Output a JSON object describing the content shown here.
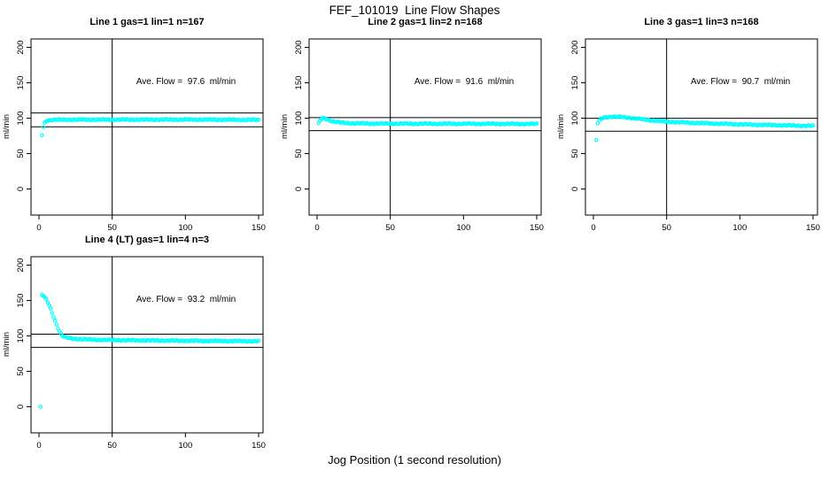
{
  "chart_data": {
    "type": "scatter",
    "title": "FEF_101019  Line Flow Shapes",
    "xlabel": "Jog Position (1 second resolution)",
    "ylabel": "ml/min",
    "xlim": [
      0,
      150
    ],
    "ylim": [
      0,
      200
    ],
    "x_ticks": [
      0,
      50,
      100,
      150
    ],
    "y_ticks": [
      0,
      50,
      100,
      150,
      200
    ],
    "grid": false,
    "legend": "none",
    "marker": "open-circle",
    "point_color": "#00ffff",
    "axis_color": "#000000",
    "vline_x": 50,
    "panels": [
      {
        "title": "Line 1 gas=1 lin=1 n=167",
        "ave_flow": 97.6,
        "annotation": "Ave. Flow =  97.6  ml/min",
        "hline_upper": 107.4,
        "hline_lower": 87.8,
        "n": 167,
        "outliers": [
          [
            2,
            76
          ]
        ],
        "profile": [
          [
            3,
            87.5
          ],
          [
            4,
            93.5
          ],
          [
            5,
            96
          ],
          [
            6,
            97
          ],
          [
            8,
            97.4
          ],
          [
            12,
            97.7
          ],
          [
            30,
            97.9
          ],
          [
            60,
            97.9
          ],
          [
            90,
            98
          ],
          [
            120,
            97.9
          ],
          [
            150,
            97.5
          ]
        ]
      },
      {
        "title": "Line 2 gas=1 lin=2 n=168",
        "ave_flow": 91.6,
        "annotation": "Ave. Flow =  91.6  ml/min",
        "hline_upper": 100.8,
        "hline_lower": 82.4,
        "n": 168,
        "outliers": [
          [
            1,
            93
          ]
        ],
        "profile": [
          [
            2,
            96.5
          ],
          [
            3,
            98.8
          ],
          [
            4,
            99.8
          ],
          [
            5,
            99.8
          ],
          [
            6,
            99
          ],
          [
            8,
            97.3
          ],
          [
            10,
            96
          ],
          [
            13,
            94.6
          ],
          [
            16,
            93.7
          ],
          [
            20,
            93.1
          ],
          [
            25,
            92.7
          ],
          [
            30,
            92.5
          ],
          [
            40,
            92.3
          ],
          [
            60,
            92.2
          ],
          [
            90,
            92.1
          ],
          [
            120,
            92
          ],
          [
            150,
            91.8
          ]
        ]
      },
      {
        "title": "Line 3 gas=1 lin=3 n=168",
        "ave_flow": 90.7,
        "annotation": "Ave. Flow =  90.7  ml/min",
        "hline_upper": 99.8,
        "hline_lower": 81.6,
        "n": 168,
        "outliers": [
          [
            2,
            69
          ]
        ],
        "profile": [
          [
            3,
            93
          ],
          [
            4,
            96
          ],
          [
            5,
            98.5
          ],
          [
            6,
            100
          ],
          [
            8,
            101.3
          ],
          [
            10,
            101.8
          ],
          [
            14,
            102
          ],
          [
            18,
            101.8
          ],
          [
            22,
            101.2
          ],
          [
            26,
            100.2
          ],
          [
            30,
            99.2
          ],
          [
            35,
            98
          ],
          [
            40,
            96.9
          ],
          [
            45,
            95.9
          ],
          [
            50,
            95.1
          ],
          [
            55,
            94.5
          ],
          [
            60,
            94
          ],
          [
            70,
            93.2
          ],
          [
            80,
            92.5
          ],
          [
            90,
            91.9
          ],
          [
            100,
            91.3
          ],
          [
            110,
            90.8
          ],
          [
            120,
            90.3
          ],
          [
            130,
            89.8
          ],
          [
            140,
            89.4
          ],
          [
            150,
            89
          ]
        ]
      },
      {
        "title": "Line 4 (LT) gas=1 lin=4 n=3",
        "ave_flow": 93.2,
        "annotation": "Ave. Flow =  93.2  ml/min",
        "hline_upper": 102.5,
        "hline_lower": 83.9,
        "n": 3,
        "outliers": [
          [
            1,
            0
          ]
        ],
        "profile": [
          [
            2,
            157.5
          ],
          [
            3,
            156.5
          ],
          [
            4,
            154.5
          ],
          [
            5,
            151.5
          ],
          [
            6,
            147.5
          ],
          [
            7,
            143
          ],
          [
            8,
            138
          ],
          [
            9,
            132.5
          ],
          [
            10,
            127
          ],
          [
            11,
            121.5
          ],
          [
            12,
            116
          ],
          [
            13,
            111
          ],
          [
            14,
            106.5
          ],
          [
            15,
            103
          ],
          [
            16,
            100.5
          ],
          [
            17,
            99
          ],
          [
            18,
            98
          ],
          [
            20,
            97
          ],
          [
            25,
            95.8
          ],
          [
            30,
            95.2
          ],
          [
            40,
            94.5
          ],
          [
            50,
            94.2
          ],
          [
            60,
            93.9
          ],
          [
            80,
            93.5
          ],
          [
            100,
            93.2
          ],
          [
            120,
            92.9
          ],
          [
            150,
            92.5
          ]
        ]
      }
    ]
  }
}
